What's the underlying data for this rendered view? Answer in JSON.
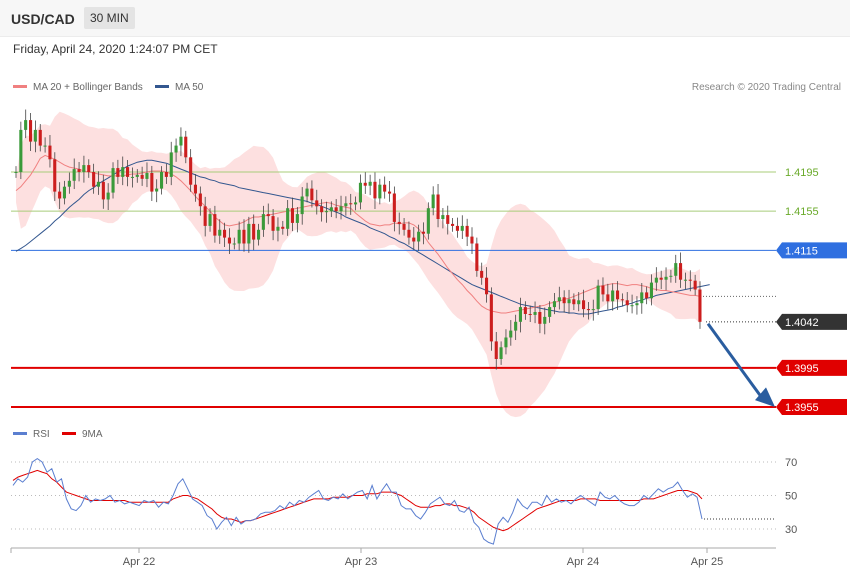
{
  "header": {
    "symbol": "USD/CAD",
    "timeframe": "30 MIN"
  },
  "datetime": "Friday, April 24, 2020 1:24:07 PM CET",
  "legend": {
    "ma20_bb": "MA 20 + Bollinger Bands",
    "ma50": "MA 50",
    "credit": "Research © 2020 Trading Central"
  },
  "rsi_legend": {
    "rsi": "RSI",
    "ma9": "9MA"
  },
  "colors": {
    "support": "#e00000",
    "resistance": "#2f6fe0",
    "green_level": "#6aaa2a",
    "last_price": "#333333",
    "ma50": "#33578f",
    "ma20": "#f08080",
    "band_fill": "#fde0e0",
    "bull": "#3a9a3a",
    "bear": "#cc1e1e",
    "arrow": "#2a5d9f"
  },
  "chart_data": [
    {
      "type": "candlestick",
      "title": "",
      "xlabel": "",
      "ylabel": "",
      "x_ticks": [
        "Apr 22",
        "Apr 23",
        "Apr 24",
        "Apr 25"
      ],
      "ylim": [
        1.3935,
        1.429
      ],
      "levels": [
        {
          "value": 1.4195,
          "label": "1.4195",
          "kind": "green"
        },
        {
          "value": 1.4155,
          "label": "1.4155",
          "kind": "green"
        },
        {
          "value": 1.4115,
          "label": "1.4115",
          "kind": "resistance"
        },
        {
          "value": 1.4042,
          "label": "1.4042",
          "kind": "last"
        },
        {
          "value": 1.3995,
          "label": "1.3995",
          "kind": "support"
        },
        {
          "value": 1.3955,
          "label": "1.3955",
          "kind": "support"
        }
      ],
      "closes": [
        1.4195,
        1.4238,
        1.4248,
        1.4226,
        1.4238,
        1.4222,
        1.4222,
        1.4208,
        1.4175,
        1.4168,
        1.418,
        1.4186,
        1.4198,
        1.4195,
        1.4202,
        1.4195,
        1.418,
        1.4185,
        1.4167,
        1.4174,
        1.4199,
        1.419,
        1.42,
        1.419,
        1.419,
        1.4192,
        1.4188,
        1.4194,
        1.4175,
        1.4178,
        1.4195,
        1.419,
        1.4215,
        1.4222,
        1.4231,
        1.421,
        1.4182,
        1.4173,
        1.416,
        1.414,
        1.4152,
        1.413,
        1.4136,
        1.4128,
        1.4122,
        1.4122,
        1.4136,
        1.4122,
        1.4142,
        1.4126,
        1.4136,
        1.4152,
        1.415,
        1.4135,
        1.4139,
        1.4137,
        1.4158,
        1.4143,
        1.4152,
        1.417,
        1.4178,
        1.4166,
        1.416,
        1.4154,
        1.4155,
        1.4159,
        1.4155,
        1.416,
        1.4163,
        1.4162,
        1.4164,
        1.4184,
        1.4181,
        1.4185,
        1.4168,
        1.4182,
        1.4175,
        1.4173,
        1.4144,
        1.4142,
        1.4136,
        1.4128,
        1.4124,
        1.4134,
        1.4132,
        1.4158,
        1.4172,
        1.4147,
        1.4151,
        1.4142,
        1.414,
        1.4135,
        1.414,
        1.4129,
        1.4122,
        1.4094,
        1.4087,
        1.407,
        1.4022,
        1.4004,
        1.4016,
        1.4026,
        1.4033,
        1.4042,
        1.4057,
        1.405,
        1.4049,
        1.4052,
        1.404,
        1.4047,
        1.4057,
        1.4063,
        1.4067,
        1.4061,
        1.4065,
        1.406,
        1.4064,
        1.4055,
        1.4054,
        1.4055,
        1.4079,
        1.407,
        1.4063,
        1.4074,
        1.4065,
        1.4064,
        1.4059,
        1.4059,
        1.4061,
        1.4072,
        1.4066,
        1.4082,
        1.4087,
        1.4085,
        1.4088,
        1.4089,
        1.4102,
        1.4085,
        1.4085,
        1.4084,
        1.4075,
        1.4042
      ],
      "ma20": [
        1.4176,
        1.418,
        1.4186,
        1.4192,
        1.42,
        1.4209,
        1.4212,
        1.421,
        1.4208,
        1.4205,
        1.4202,
        1.42,
        1.4199,
        1.4198,
        1.4196,
        1.4195,
        1.4194,
        1.4193,
        1.4192,
        1.4191,
        1.4191,
        1.4191,
        1.4191,
        1.4192,
        1.4193,
        1.4193,
        1.4194,
        1.4195,
        1.4196,
        1.4196,
        1.4196,
        1.4195,
        1.4193,
        1.419,
        1.4186,
        1.4181,
        1.4176,
        1.417,
        1.4165,
        1.416,
        1.4155,
        1.4149,
        1.4145,
        1.4141,
        1.414,
        1.4141,
        1.4142,
        1.4144,
        1.4147,
        1.4149,
        1.4149,
        1.415,
        1.4151,
        1.4152,
        1.4153,
        1.4154,
        1.4155,
        1.4157,
        1.4158,
        1.4159,
        1.416,
        1.4161,
        1.4162,
        1.4163,
        1.4164,
        1.4163,
        1.4161,
        1.416,
        1.4159,
        1.4158,
        1.4153,
        1.4149,
        1.4145,
        1.4142,
        1.4141,
        1.414,
        1.4141,
        1.4141,
        1.4143,
        1.4142,
        1.4143,
        1.4143,
        1.4141,
        1.4137,
        1.4131,
        1.4123,
        1.4117,
        1.4111,
        1.4104,
        1.4097,
        1.4091,
        1.4085,
        1.408,
        1.4074,
        1.4069,
        1.4063,
        1.4058,
        1.4055,
        1.4053,
        1.4052,
        1.4051,
        1.4051,
        1.4052,
        1.4053,
        1.4054,
        1.4055,
        1.4056,
        1.4057,
        1.4058,
        1.4059,
        1.4061,
        1.4062,
        1.4063,
        1.4065,
        1.4066,
        1.4068,
        1.407,
        1.4072,
        1.4074,
        1.4076,
        1.4078,
        1.4079,
        1.408,
        1.4081,
        1.4081,
        1.408,
        1.4079,
        1.408,
        1.408,
        1.4079,
        1.4078,
        1.4076,
        1.4075,
        1.4074,
        1.4074,
        1.4073,
        1.4072,
        1.4071,
        1.407,
        1.4069,
        1.4069,
        1.4068
      ],
      "ma50": [
        1.4114,
        1.4117,
        1.412,
        1.4124,
        1.4128,
        1.4132,
        1.4136,
        1.414,
        1.4145,
        1.4149,
        1.4154,
        1.4159,
        1.4163,
        1.4167,
        1.4172,
        1.4176,
        1.4179,
        1.4183,
        1.4186,
        1.4189,
        1.4192,
        1.4195,
        1.4198,
        1.4201,
        1.4203,
        1.4205,
        1.4206,
        1.4207,
        1.4207,
        1.4206,
        1.4205,
        1.4204,
        1.4202,
        1.42,
        1.4198,
        1.4196,
        1.4194,
        1.4192,
        1.419,
        1.4189,
        1.4187,
        1.4186,
        1.4184,
        1.4183,
        1.4182,
        1.4181,
        1.4179,
        1.4178,
        1.4177,
        1.4176,
        1.4175,
        1.4174,
        1.4173,
        1.4172,
        1.4171,
        1.417,
        1.4169,
        1.4168,
        1.4167,
        1.4166,
        1.4165,
        1.4163,
        1.4162,
        1.416,
        1.4158,
        1.4156,
        1.4154,
        1.4152,
        1.4149,
        1.4147,
        1.4145,
        1.4143,
        1.4141,
        1.4138,
        1.4136,
        1.4134,
        1.4132,
        1.4129,
        1.4127,
        1.4124,
        1.4122,
        1.4119,
        1.4116,
        1.4113,
        1.411,
        1.4107,
        1.4104,
        1.4101,
        1.4098,
        1.4095,
        1.4092,
        1.4089,
        1.4086,
        1.4083,
        1.408,
        1.4078,
        1.4076,
        1.4074,
        1.4072,
        1.407,
        1.4068,
        1.4066,
        1.4064,
        1.4062,
        1.406,
        1.4059,
        1.4058,
        1.4057,
        1.4056,
        1.4055,
        1.4054,
        1.4053,
        1.4052,
        1.4052,
        1.4051,
        1.4051,
        1.405,
        1.405,
        1.405,
        1.4051,
        1.4052,
        1.4053,
        1.4054,
        1.4055,
        1.4057,
        1.4058,
        1.406,
        1.4061,
        1.4063,
        1.4064,
        1.4066,
        1.4067,
        1.4069,
        1.407,
        1.4071,
        1.4072,
        1.4073,
        1.4074,
        1.4075,
        1.4076,
        1.4077,
        1.4078,
        1.4079,
        1.408
      ]
    },
    {
      "type": "line",
      "title": "",
      "x_ticks": [
        "Apr 22",
        "Apr 23",
        "Apr 24",
        "Apr 25"
      ],
      "y_ticks": [
        30,
        50,
        70
      ],
      "ylim": [
        19,
        76
      ],
      "series": [
        {
          "name": "RSI",
          "values": [
            56,
            60,
            58,
            61,
            70,
            72,
            70,
            64,
            66,
            58,
            60,
            48,
            42,
            41,
            44,
            50,
            46,
            48,
            47,
            48,
            50,
            46,
            47,
            45,
            46,
            45,
            44,
            47,
            46,
            47,
            43,
            46,
            45,
            50,
            57,
            60,
            54,
            48,
            46,
            44,
            38,
            36,
            30,
            34,
            37,
            32,
            37,
            33,
            35,
            35,
            36,
            39,
            40,
            40,
            41,
            44,
            42,
            46,
            44,
            47,
            46,
            49,
            51,
            53,
            48,
            47,
            49,
            48,
            51,
            48,
            50,
            52,
            53,
            48,
            56,
            48,
            53,
            57,
            52,
            52,
            44,
            42,
            42,
            38,
            36,
            40,
            45,
            47,
            49,
            45,
            44,
            47,
            41,
            40,
            43,
            34,
            31,
            24,
            22,
            21,
            33,
            37,
            34,
            40,
            48,
            44,
            42,
            46,
            46,
            44,
            50,
            46,
            48,
            46,
            47,
            45,
            48,
            50,
            48,
            46,
            44,
            52,
            49,
            48,
            50,
            47,
            45,
            44,
            44,
            46,
            50,
            48,
            51,
            54,
            52,
            54,
            55,
            58,
            53,
            49,
            51,
            49,
            36
          ]
        },
        {
          "name": "9MA",
          "values": [
            59,
            61,
            62,
            63,
            64,
            65,
            64,
            63,
            60,
            58,
            55,
            52,
            51,
            50,
            49,
            48,
            47,
            47,
            47,
            47,
            47,
            47,
            47,
            47,
            46,
            46,
            46,
            46,
            46,
            46,
            46,
            46,
            46,
            48,
            49,
            50,
            50,
            49,
            48,
            46,
            44,
            42,
            39,
            37,
            36,
            36,
            35,
            34,
            35,
            35,
            36,
            37,
            38,
            39,
            40,
            41,
            42,
            43,
            44,
            45,
            46,
            47,
            48,
            48,
            48,
            48,
            49,
            49,
            49,
            49,
            50,
            50,
            50,
            51,
            51,
            51,
            52,
            52,
            52,
            51,
            50,
            48,
            46,
            44,
            43,
            43,
            43,
            44,
            44,
            45,
            45,
            44,
            44,
            43,
            42,
            40,
            37,
            35,
            33,
            31,
            30,
            29,
            30,
            32,
            34,
            36,
            38,
            40,
            42,
            43,
            44,
            45,
            46,
            47,
            47,
            47,
            47,
            48,
            48,
            48,
            48,
            47,
            47,
            47,
            47,
            47,
            47,
            47,
            47,
            47,
            48,
            48,
            48,
            49,
            50,
            51,
            52,
            53,
            53,
            53,
            52,
            51,
            48
          ]
        }
      ]
    }
  ]
}
